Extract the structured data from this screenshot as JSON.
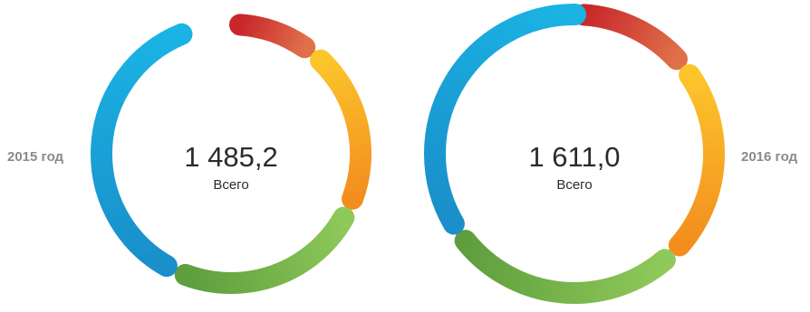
{
  "chart_data": [
    {
      "type": "donut",
      "side_label": "2015 год",
      "total_label": "1 485,2",
      "total_caption": "Всего",
      "segments": [
        {
          "color_start": "#c8262a",
          "color_end": "#e0704a",
          "share": 0.085
        },
        {
          "color_start": "#fcc52c",
          "color_end": "#f38d1e",
          "share": 0.185
        },
        {
          "color_start": "#8fc95a",
          "color_end": "#5e9e3d",
          "share": 0.225
        },
        {
          "color_start": "#1a8fca",
          "color_end": "#1ab4e4",
          "share": 0.355
        }
      ]
    },
    {
      "type": "donut",
      "side_label": "2016 год",
      "total_label": "1 611,0",
      "total_caption": "Всего",
      "segments": [
        {
          "color_start": "#c8262a",
          "color_end": "#e0704a",
          "share": 0.12
        },
        {
          "color_start": "#fcc52c",
          "color_end": "#f38d1e",
          "share": 0.21
        },
        {
          "color_start": "#8fc95a",
          "color_end": "#5e9e3d",
          "share": 0.255
        },
        {
          "color_start": "#1a8fca",
          "color_end": "#1ab4e4",
          "share": 0.335
        }
      ]
    }
  ]
}
